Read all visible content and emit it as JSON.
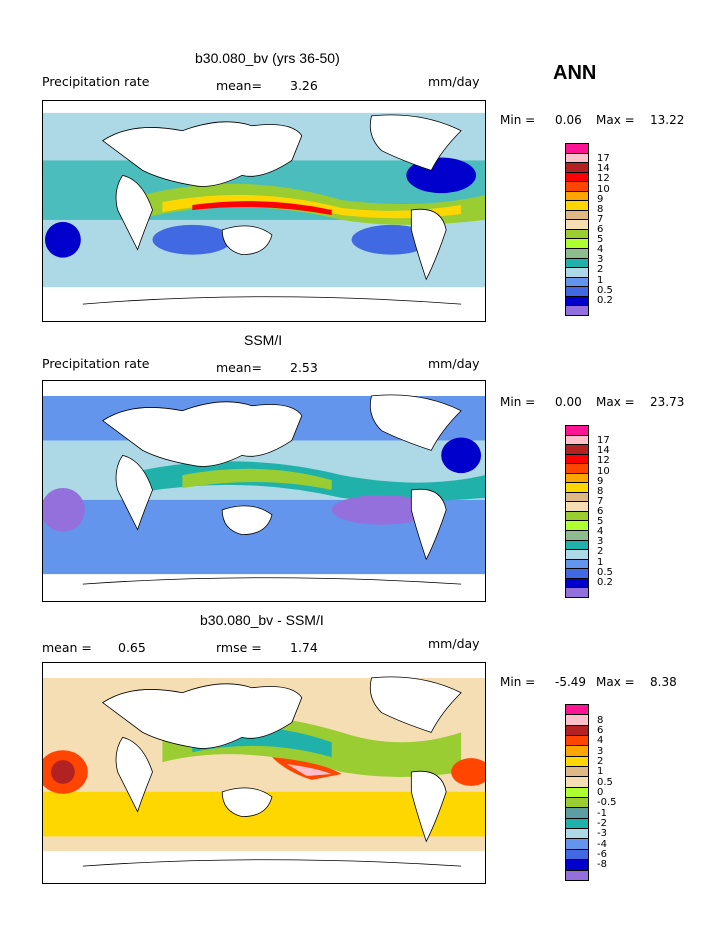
{
  "season": "ANN",
  "colors": {
    "precip": [
      "#9370db",
      "#0000cd",
      "#4169e1",
      "#6495ed",
      "#add8e6",
      "#20b2aa",
      "#8fbc8f",
      "#adff2f",
      "#9acd32",
      "#f5deb3",
      "#deb887",
      "#ffd700",
      "#ffa500",
      "#ff4500",
      "#ff0000",
      "#b22222",
      "#ffc0cb",
      "#ff1493"
    ],
    "diff": [
      "#9370db",
      "#0000cd",
      "#4169e1",
      "#6495ed",
      "#add8e6",
      "#20b2aa",
      "#5f9ea0",
      "#9acd32",
      "#adff2f",
      "#f5deb3",
      "#deb887",
      "#ffd700",
      "#ffa500",
      "#ff4500",
      "#b22222",
      "#ffc0cb",
      "#ff1493"
    ]
  },
  "panels": [
    {
      "title": "b30.080_bv (yrs 36-50)",
      "left_label": "Precipitation rate",
      "mean_label": "mean=",
      "mean_value": "3.26",
      "units": "mm/day",
      "min_label": "Min =",
      "min_value": "0.06",
      "max_label": "Max =",
      "max_value": "13.22",
      "legend_ticks": [
        "17",
        "14",
        "12",
        "10",
        "9",
        "8",
        "7",
        "6",
        "5",
        "4",
        "3",
        "2",
        "1",
        "0.5",
        "0.2"
      ]
    },
    {
      "title": "SSM/I",
      "left_label": "Precipitation rate",
      "mean_label": "mean=",
      "mean_value": "2.53",
      "units": "mm/day",
      "min_label": "Min =",
      "min_value": "0.00",
      "max_label": "Max =",
      "max_value": "23.73",
      "legend_ticks": [
        "17",
        "14",
        "12",
        "10",
        "9",
        "8",
        "7",
        "6",
        "5",
        "4",
        "3",
        "2",
        "1",
        "0.5",
        "0.2"
      ]
    },
    {
      "title": "b30.080_bv - SSM/I",
      "left_label": "mean =",
      "mean_label": "rmse =",
      "left_value": "0.65",
      "mean_value": "1.74",
      "units": "mm/day",
      "min_label": "Min =",
      "min_value": "-5.49",
      "max_label": "Max =",
      "max_value": "8.38",
      "legend_ticks": [
        "8",
        "6",
        "4",
        "3",
        "2",
        "1",
        "0.5",
        "0",
        "-0.5",
        "-1",
        "-2",
        "-3",
        "-4",
        "-6",
        "-8"
      ]
    }
  ]
}
